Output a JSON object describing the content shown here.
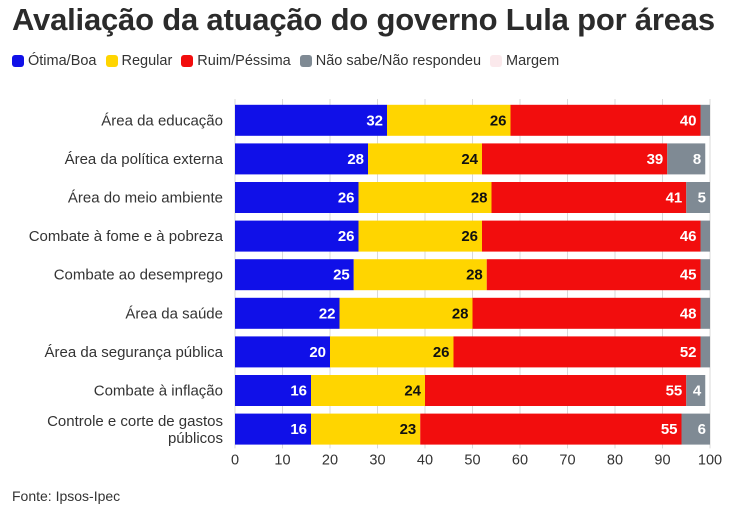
{
  "title": "Avaliação da atuação do governo Lula por áreas",
  "source": "Fonte: Ipsos-Ipec",
  "chart_data": {
    "type": "bar",
    "orientation": "horizontal",
    "stacked": true,
    "title": "Avaliação da atuação do governo Lula por áreas",
    "categories": [
      "Área da educação",
      "Área da política externa",
      "Área do meio ambiente",
      "Combate à fome e à pobreza",
      "Combate ao desemprego",
      "Área da saúde",
      "Área da segurança pública",
      "Combate à inflação",
      "Controle e corte de gastos públicos"
    ],
    "series": [
      {
        "name": "Ótima/Boa",
        "color": "#1010e8",
        "values": [
          32,
          28,
          26,
          26,
          25,
          22,
          20,
          16,
          16
        ]
      },
      {
        "name": "Regular",
        "color": "#ffd500",
        "values": [
          26,
          24,
          28,
          26,
          28,
          28,
          26,
          24,
          23
        ]
      },
      {
        "name": "Ruim/Péssima",
        "color": "#f20d0d",
        "values": [
          40,
          39,
          41,
          46,
          45,
          48,
          52,
          55,
          55
        ]
      },
      {
        "name": "Não sabe/Não respondeu",
        "color": "#7f8a94",
        "values": [
          2,
          8,
          5,
          2,
          2,
          2,
          2,
          4,
          6
        ]
      },
      {
        "name": "Margem",
        "color": "#ffffff",
        "values": [
          0,
          1,
          0,
          0,
          0,
          0,
          0,
          1,
          0
        ]
      }
    ],
    "xlim": [
      0,
      100
    ],
    "xticks": [
      0,
      10,
      20,
      30,
      40,
      50,
      60,
      70,
      80,
      90,
      100
    ],
    "grid": "vertical",
    "legend_position": "top-left"
  }
}
